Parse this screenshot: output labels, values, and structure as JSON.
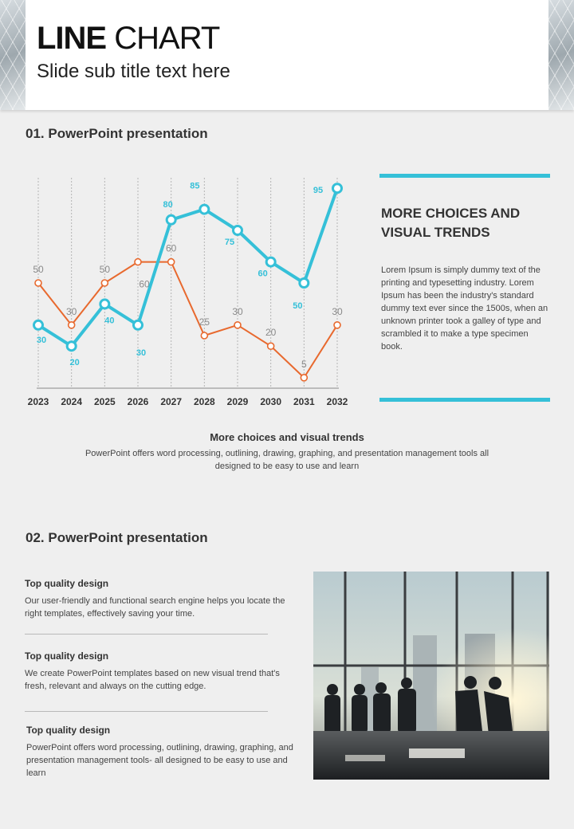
{
  "header": {
    "title_bold": "LINE",
    "title_rest": " CHART",
    "subtitle": "Slide sub title text here"
  },
  "section1": {
    "title": "01. PowerPoint presentation"
  },
  "chart_data": {
    "type": "line",
    "x": [
      "2023",
      "2024",
      "2025",
      "2026",
      "2027",
      "2028",
      "2029",
      "2030",
      "2031",
      "2032"
    ],
    "ylim": [
      0,
      100
    ],
    "title": "",
    "xlabel": "",
    "ylabel": "",
    "series": [
      {
        "values": [
          30,
          20,
          40,
          30,
          80,
          85,
          75,
          60,
          50,
          95
        ],
        "color": "#35c0d8"
      },
      {
        "values": [
          50,
          30,
          50,
          60,
          60,
          25,
          30,
          20,
          5,
          30
        ],
        "color": "#e8692e"
      }
    ],
    "grid": "vertical dashed lines",
    "legend": "none"
  },
  "side": {
    "title_line1": "MORE CHOICES AND",
    "title_line2": "VISUAL TRENDS",
    "body": "Lorem Ipsum is simply dummy text of the printing and typesetting industry. Lorem Ipsum has been the industry's standard dummy text ever since the 1500s, when an unknown printer took a galley of type and scrambled it to make a type specimen book."
  },
  "center": {
    "title": "More choices and visual trends",
    "body": "PowerPoint offers word processing, outlining, drawing, graphing, and presentation management tools all designed to be easy to use and learn"
  },
  "section2": {
    "title": "02. PowerPoint presentation",
    "features": [
      {
        "title": "Top quality design",
        "body": "Our user-friendly and functional search engine helps you locate the right templates, effectively saving your time."
      },
      {
        "title": "Top quality design",
        "body": "We create PowerPoint templates based on new visual trend that's fresh, relevant and always on the cutting edge."
      },
      {
        "title": "Top quality design",
        "body": "PowerPoint offers word processing, outlining, drawing, graphing, and presentation management tools- all designed to be easy to use and learn"
      }
    ]
  }
}
